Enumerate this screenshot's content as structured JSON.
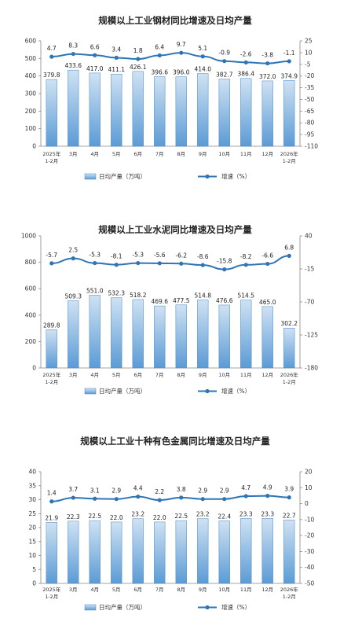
{
  "colors": {
    "bar_fill_top": "#cfe2f3",
    "bar_fill_bottom": "#5b9bd5",
    "bar_stroke": "#4a86c5",
    "line": "#2e75b6"
  },
  "chart_data": [
    {
      "type": "bar",
      "title": "规模以上工业钢材同比增速及日均产量",
      "categories": [
        [
          "2025年",
          "1-2月"
        ],
        [
          "3月"
        ],
        [
          "4月"
        ],
        [
          "5月"
        ],
        [
          "6月"
        ],
        [
          "7月"
        ],
        [
          "8月"
        ],
        [
          "9月"
        ],
        [
          "10月"
        ],
        [
          "11月"
        ],
        [
          "12月"
        ],
        [
          "2026年",
          "1-2月"
        ]
      ],
      "series": [
        {
          "name": "日均产量（万吨）",
          "axis": "left",
          "values": [
            379.8,
            433.6,
            417.0,
            411.1,
            426.1,
            396.6,
            396.0,
            414.0,
            382.7,
            386.4,
            372.0,
            374.9
          ]
        },
        {
          "name": "增速（%）",
          "axis": "right",
          "values": [
            4.7,
            8.3,
            6.6,
            3.4,
            1.8,
            6.4,
            9.7,
            5.1,
            -0.9,
            -2.6,
            -3.8,
            -1.1
          ]
        }
      ],
      "y_left": {
        "ticks": [
          0,
          100,
          200,
          300,
          400,
          500,
          600
        ],
        "lim": [
          0,
          600
        ]
      },
      "y_right": {
        "ticks": [
          25,
          10,
          -5,
          -20,
          -35,
          -50,
          -65,
          -80,
          -95,
          -110
        ],
        "lim": [
          -110,
          25
        ]
      },
      "legend": {
        "bar": "日均产量（万吨）",
        "line": "增速（%）"
      },
      "legend_position": "bottom"
    },
    {
      "type": "bar",
      "title": "规模以上工业水泥同比增速及日均产量",
      "categories": [
        [
          "2025年",
          "1-2月"
        ],
        [
          "3月"
        ],
        [
          "4月"
        ],
        [
          "5月"
        ],
        [
          "6月"
        ],
        [
          "7月"
        ],
        [
          "8月"
        ],
        [
          "9月"
        ],
        [
          "10月"
        ],
        [
          "11月"
        ],
        [
          "12月"
        ],
        [
          "2026年",
          "1-2月"
        ]
      ],
      "series": [
        {
          "name": "日均产量（万吨）",
          "axis": "left",
          "values": [
            289.8,
            509.3,
            551.0,
            532.3,
            518.2,
            469.6,
            477.5,
            514.8,
            476.6,
            514.5,
            465.0,
            302.2
          ]
        },
        {
          "name": "增速（%）",
          "axis": "right",
          "values": [
            -5.7,
            2.5,
            -5.3,
            -8.1,
            -5.3,
            -5.6,
            -6.2,
            -8.6,
            -15.8,
            -8.2,
            -6.6,
            6.8
          ]
        }
      ],
      "y_left": {
        "ticks": [
          0,
          200,
          400,
          600,
          800,
          1000
        ],
        "lim": [
          0,
          1000
        ]
      },
      "y_right": {
        "ticks": [
          40,
          -15,
          -70,
          -125,
          -180
        ],
        "lim": [
          -180,
          40
        ]
      },
      "legend": {
        "bar": "日均产量（万吨）",
        "line": "增速（%）"
      },
      "legend_position": "bottom"
    },
    {
      "type": "bar",
      "title": "规模以上工业十种有色金属同比增速及日均产量",
      "categories": [
        [
          "2025年",
          "1-2月"
        ],
        [
          "3月"
        ],
        [
          "4月"
        ],
        [
          "5月"
        ],
        [
          "6月"
        ],
        [
          "7月"
        ],
        [
          "8月"
        ],
        [
          "9月"
        ],
        [
          "10月"
        ],
        [
          "11月"
        ],
        [
          "12月"
        ],
        [
          "2026年",
          "1-2月"
        ]
      ],
      "series": [
        {
          "name": "日均产量（万吨）",
          "axis": "left",
          "values": [
            21.9,
            22.3,
            22.5,
            22.0,
            23.2,
            22.0,
            22.5,
            23.2,
            22.4,
            23.3,
            23.3,
            22.7
          ]
        },
        {
          "name": "增速（%）",
          "axis": "right",
          "values": [
            1.4,
            3.7,
            3.1,
            2.9,
            4.4,
            2.2,
            3.8,
            2.9,
            2.9,
            4.7,
            4.9,
            3.9
          ]
        }
      ],
      "y_left": {
        "ticks": [
          0,
          5,
          10,
          15,
          20,
          25,
          30,
          35,
          40
        ],
        "lim": [
          0,
          40
        ]
      },
      "y_right": {
        "ticks": [
          20,
          10,
          0,
          -10,
          -20,
          -30,
          -40,
          -50
        ],
        "lim": [
          -50,
          20
        ]
      },
      "legend": {
        "bar": "日均产量（万吨）",
        "line": "增速（%）"
      },
      "legend_position": "bottom"
    }
  ]
}
